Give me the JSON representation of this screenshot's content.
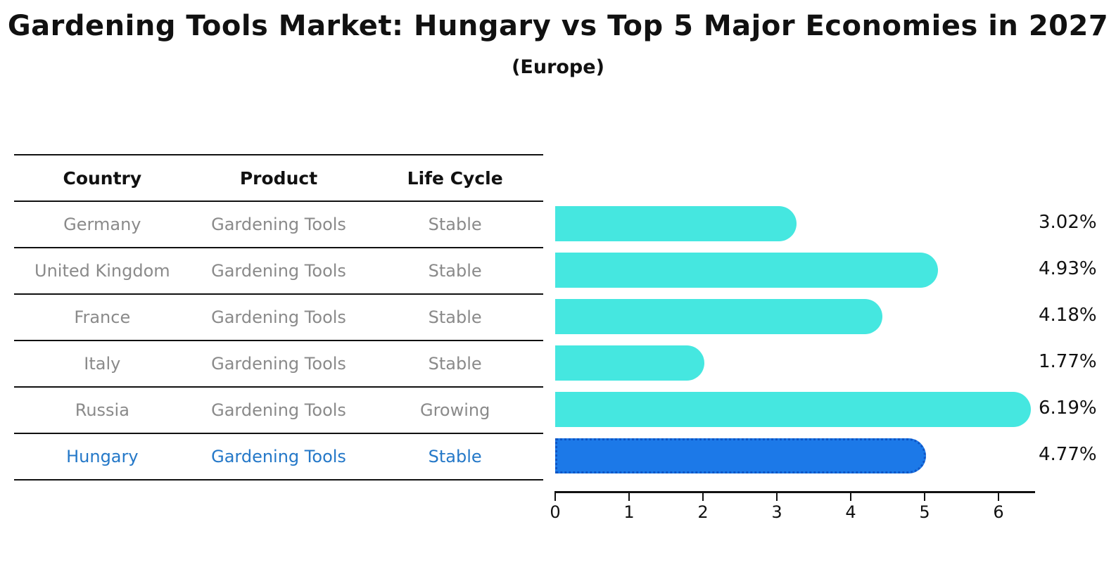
{
  "title": "Gardening Tools Market: Hungary vs Top 5 Major Economies in 2027",
  "subtitle": "(Europe)",
  "table": {
    "headers": [
      "Country",
      "Product",
      "Life Cycle"
    ],
    "rows": [
      {
        "country": "Germany",
        "product": "Gardening Tools",
        "life_cycle": "Stable"
      },
      {
        "country": "United Kingdom",
        "product": "Gardening Tools",
        "life_cycle": "Stable"
      },
      {
        "country": "France",
        "product": "Gardening Tools",
        "life_cycle": "Stable"
      },
      {
        "country": "Italy",
        "product": "Gardening Tools",
        "life_cycle": "Stable"
      },
      {
        "country": "Russia",
        "product": "Gardening Tools",
        "life_cycle": "Growing"
      },
      {
        "country": "Hungary",
        "product": "Gardening Tools",
        "life_cycle": "Stable"
      }
    ]
  },
  "chart_data": {
    "type": "bar",
    "orientation": "horizontal",
    "title": "Gardening Tools Market: Hungary vs Top 5 Major Economies in 2027 (Europe)",
    "categories": [
      "Germany",
      "United Kingdom",
      "France",
      "Italy",
      "Russia",
      "Hungary"
    ],
    "values": [
      3.02,
      4.93,
      4.18,
      1.77,
      6.19,
      4.77
    ],
    "value_labels": [
      "3.02%",
      "4.93%",
      "4.18%",
      "1.77%",
      "6.19%",
      "4.77%"
    ],
    "x_ticks": [
      0,
      1,
      2,
      3,
      4,
      5,
      6
    ],
    "xlim": [
      0,
      6.5
    ],
    "grid": false,
    "legend": false,
    "highlight_index": 5,
    "colors": {
      "bar": "#45e7e0",
      "highlight_bar": "#1c79e8",
      "highlight_border": "#0e55c5",
      "table_text": "#8a8a8a",
      "highlight_text": "#2478c8",
      "axis": "#111111"
    }
  }
}
